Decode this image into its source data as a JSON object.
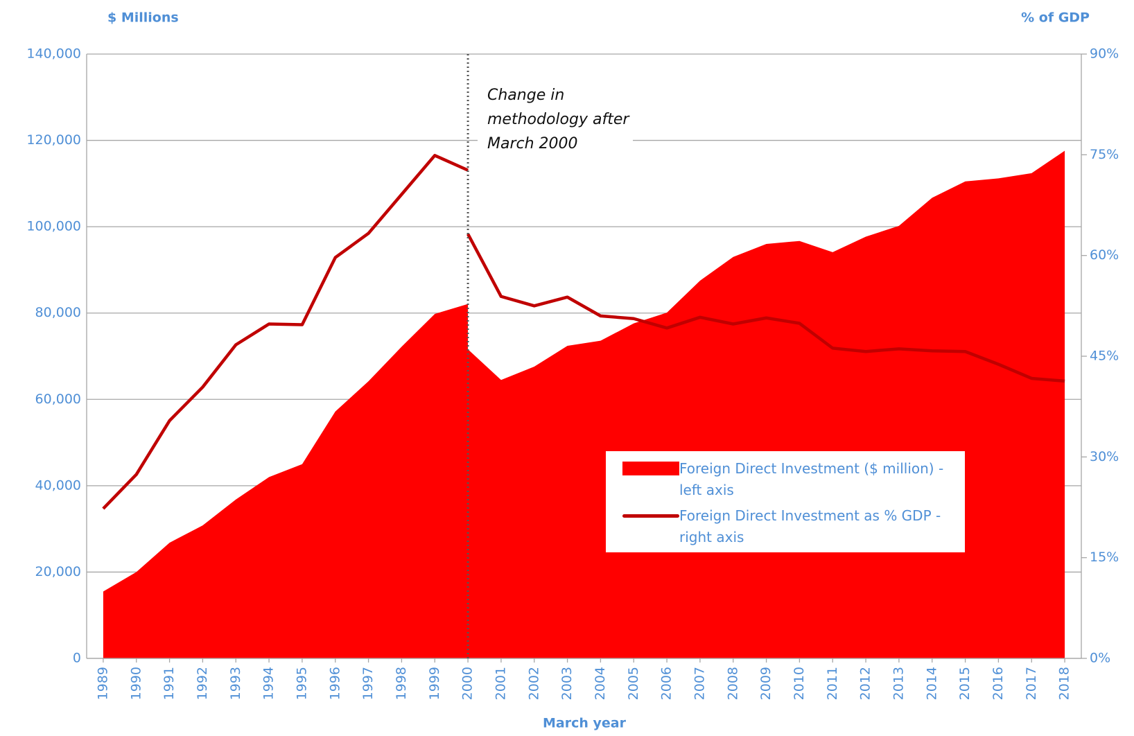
{
  "chart_data": {
    "type": "area+line",
    "ylabel": "$ Millions",
    "y2label": "% of GDP",
    "xlabel": "March year",
    "x": [
      1989,
      1990,
      1991,
      1992,
      1993,
      1994,
      1995,
      1996,
      1997,
      1998,
      1999,
      2000,
      2000,
      2001,
      2002,
      2003,
      2004,
      2005,
      2006,
      2007,
      2008,
      2009,
      2010,
      2011,
      2012,
      2013,
      2014,
      2015,
      2016,
      2017,
      2018
    ],
    "xlim": [
      1988.5,
      2018.5
    ],
    "xticks": [
      1989,
      1990,
      1991,
      1992,
      1993,
      1994,
      1995,
      1996,
      1997,
      1998,
      1999,
      2000,
      2001,
      2002,
      2003,
      2004,
      2005,
      2006,
      2007,
      2008,
      2009,
      2010,
      2011,
      2012,
      2013,
      2014,
      2015,
      2016,
      2017,
      2018
    ],
    "series": [
      {
        "name": "Foreign Direct Investment ($ million) - left axis",
        "type": "area",
        "color": "#ff0000",
        "values": [
          15500,
          20000,
          26800,
          30800,
          36800,
          42000,
          45000,
          57200,
          64200,
          72200,
          79800,
          82100,
          71600,
          64500,
          67600,
          72400,
          73600,
          77600,
          80100,
          87500,
          93000,
          96000,
          96700,
          94100,
          97700,
          100200,
          106700,
          110500,
          111200,
          112400,
          117600
        ]
      },
      {
        "name": "Foreign Direct Investment as % GDP - right axis",
        "type": "line",
        "axis": "y2",
        "color": "#c00000",
        "values": [
          22.3,
          27.4,
          35.4,
          40.4,
          46.7,
          49.8,
          49.7,
          59.7,
          63.3,
          69.1,
          74.9,
          72.7,
          63.2,
          53.9,
          52.5,
          53.8,
          51.0,
          50.6,
          49.2,
          50.8,
          49.8,
          50.7,
          49.9,
          46.2,
          45.7,
          46.1,
          45.8,
          45.7,
          43.8,
          41.7,
          41.3
        ]
      }
    ],
    "ylim": [
      0,
      140000
    ],
    "yticks": [
      0,
      {
        "value": 20000,
        "label": "20,000"
      },
      {
        "value": 40000,
        "label": "40,000"
      },
      {
        "value": 60000,
        "label": "60,000"
      },
      {
        "value": 80000,
        "label": "80,000"
      },
      {
        "value": 100000,
        "label": "100,000"
      },
      {
        "value": 120000,
        "label": "120,000"
      },
      {
        "value": 140000,
        "label": "140,000"
      }
    ],
    "y2lim": [
      0,
      90
    ],
    "y2ticks": [
      {
        "value": 0,
        "label": "0%"
      },
      {
        "value": 15,
        "label": "15%"
      },
      {
        "value": 30,
        "label": "30%"
      },
      {
        "value": 45,
        "label": "45%"
      },
      {
        "value": 60,
        "label": "60%"
      },
      {
        "value": 75,
        "label": "75%"
      },
      {
        "value": 90,
        "label": "90%"
      }
    ],
    "grid": true,
    "annotation": {
      "text": "Change in methodology after March 2000",
      "x": 2000
    }
  }
}
